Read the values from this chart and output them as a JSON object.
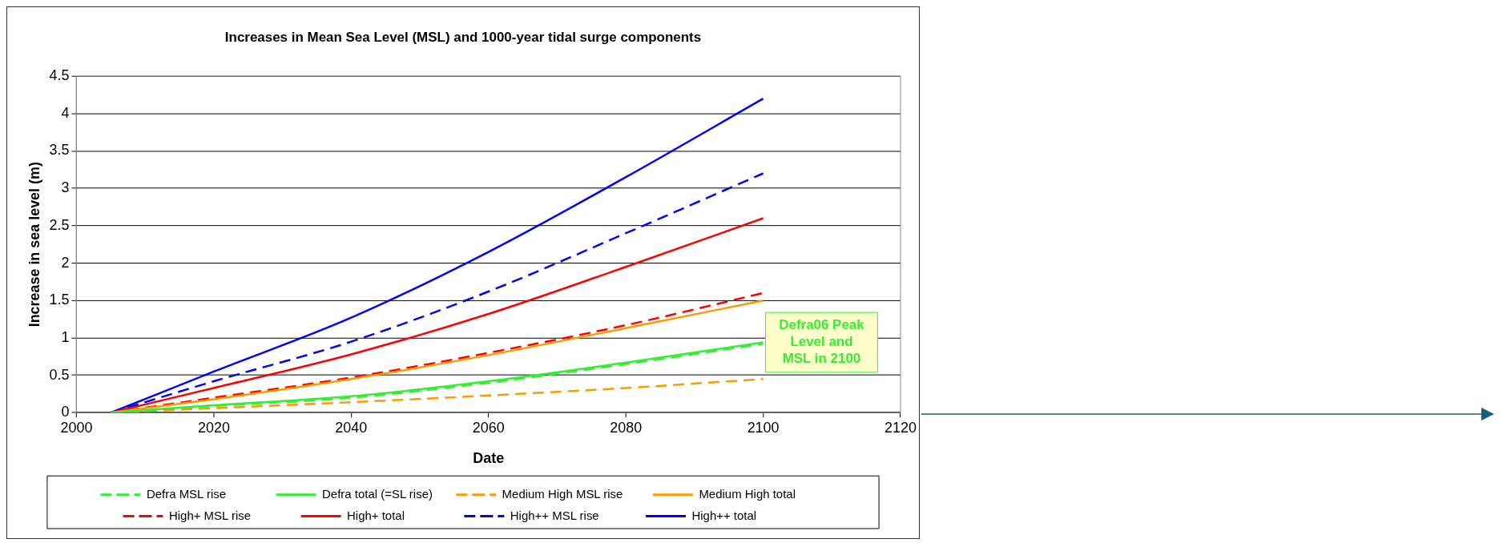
{
  "chart_data": {
    "type": "line",
    "title": "Increases in Mean Sea Level (MSL) and 1000-year tidal surge components",
    "xlabel": "Date",
    "ylabel": "Increase in sea level (m)",
    "x": [
      2005,
      2020,
      2040,
      2060,
      2080,
      2100
    ],
    "series": [
      {
        "name": "Defra MSL rise",
        "color": "#33ee33",
        "line_style": "dashed",
        "values": [
          0,
          0.09,
          0.2,
          0.4,
          0.65,
          0.92
        ]
      },
      {
        "name": "Defra total (=SL rise)",
        "color": "#33ee33",
        "line_style": "solid",
        "values": [
          0,
          0.1,
          0.22,
          0.42,
          0.67,
          0.94
        ]
      },
      {
        "name": "Medium High MSL rise",
        "color": "#ff9900",
        "line_style": "dashed",
        "values": [
          0,
          0.06,
          0.14,
          0.23,
          0.33,
          0.45
        ]
      },
      {
        "name": "Medium High total",
        "color": "#ff9900",
        "line_style": "solid",
        "values": [
          0,
          0.18,
          0.45,
          0.77,
          1.13,
          1.5
        ]
      },
      {
        "name": "High+ MSL rise",
        "color": "#ff0000",
        "line_style": "dashed",
        "values": [
          0,
          0.2,
          0.47,
          0.8,
          1.17,
          1.6
        ]
      },
      {
        "name": "High+ total",
        "color": "#ff0000",
        "line_style": "solid",
        "values": [
          0,
          0.33,
          0.78,
          1.32,
          1.95,
          2.6
        ]
      },
      {
        "name": "High++ MSL rise",
        "color": "#0000ff",
        "line_style": "dashed",
        "values": [
          0,
          0.42,
          0.95,
          1.62,
          2.4,
          3.2
        ]
      },
      {
        "name": "High++ total",
        "color": "#0000ff",
        "line_style": "solid",
        "values": [
          0,
          0.55,
          1.27,
          2.15,
          3.15,
          4.2
        ]
      }
    ],
    "xlim": [
      2000,
      2120
    ],
    "xticks": [
      2000,
      2020,
      2040,
      2060,
      2080,
      2100,
      2120
    ],
    "ylim": [
      0,
      4.5
    ],
    "yticks": [
      0,
      0.5,
      1,
      1.5,
      2,
      2.5,
      3,
      3.5,
      4,
      4.5
    ],
    "grid": "y",
    "legend": "bottom",
    "marker": "none",
    "annotations": [
      {
        "text": "Defra06 Peak Level and MSL in 2100",
        "x": 2100,
        "y": 0.94
      }
    ]
  }
}
